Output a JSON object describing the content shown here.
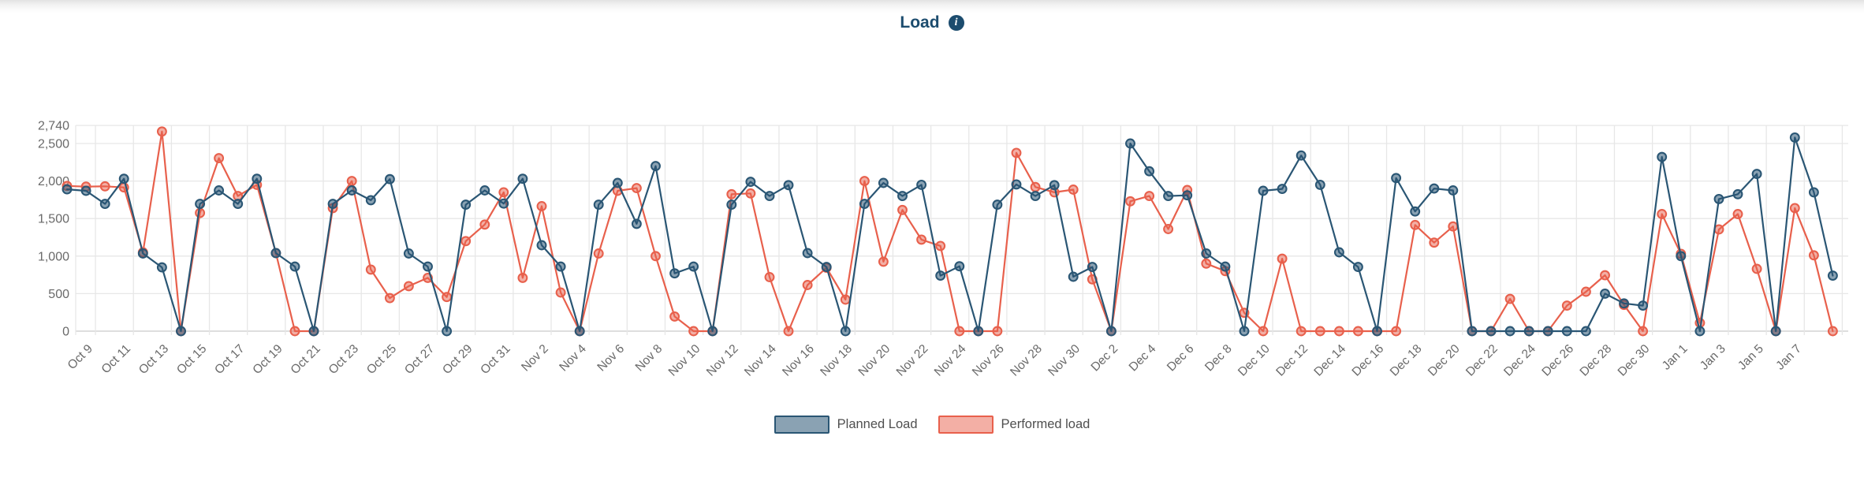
{
  "header": {
    "title": "Load",
    "info_glyph": "i"
  },
  "legend": [
    {
      "label": "Planned Load",
      "border": "#2a5674",
      "fill": "rgba(42,86,116,0.55)"
    },
    {
      "label": "Performed load",
      "border": "#e8604c",
      "fill": "rgba(232,96,76,0.5)"
    }
  ],
  "colors": {
    "title_navy": "#1c4c6e",
    "grid": "#e7e7e7",
    "axis_line": "#c9c9c9",
    "tick_label": "#696969"
  },
  "chart_data": {
    "type": "line",
    "title": "Load",
    "xlabel": "",
    "ylabel": "",
    "ylim": [
      0,
      2740
    ],
    "yticks": [
      0,
      500,
      1000,
      1500,
      2000,
      2500,
      2740
    ],
    "grid": true,
    "legend_position": "bottom",
    "x_tick_step_note": "labels shown every 2nd day from Oct 9 to Jan 7",
    "x": [
      "Oct 8",
      "Oct 9",
      "Oct 10",
      "Oct 11",
      "Oct 12",
      "Oct 13",
      "Oct 14",
      "Oct 15",
      "Oct 16",
      "Oct 17",
      "Oct 18",
      "Oct 19",
      "Oct 20",
      "Oct 21",
      "Oct 22",
      "Oct 23",
      "Oct 24",
      "Oct 25",
      "Oct 26",
      "Oct 27",
      "Oct 28",
      "Oct 29",
      "Oct 30",
      "Oct 31",
      "Nov 1",
      "Nov 2",
      "Nov 3",
      "Nov 4",
      "Nov 5",
      "Nov 6",
      "Nov 7",
      "Nov 8",
      "Nov 9",
      "Nov 10",
      "Nov 11",
      "Nov 12",
      "Nov 13",
      "Nov 14",
      "Nov 15",
      "Nov 16",
      "Nov 17",
      "Nov 18",
      "Nov 19",
      "Nov 20",
      "Nov 21",
      "Nov 22",
      "Nov 23",
      "Nov 24",
      "Nov 25",
      "Nov 26",
      "Nov 27",
      "Nov 28",
      "Nov 29",
      "Nov 30",
      "Dec 1",
      "Dec 2",
      "Dec 3",
      "Dec 4",
      "Dec 5",
      "Dec 6",
      "Dec 7",
      "Dec 8",
      "Dec 9",
      "Dec 10",
      "Dec 11",
      "Dec 12",
      "Dec 13",
      "Dec 14",
      "Dec 15",
      "Dec 16",
      "Dec 17",
      "Dec 18",
      "Dec 19",
      "Dec 20",
      "Dec 21",
      "Dec 22",
      "Dec 23",
      "Dec 24",
      "Dec 25",
      "Dec 26",
      "Dec 27",
      "Dec 28",
      "Dec 29",
      "Dec 30",
      "Dec 31",
      "Jan 1",
      "Jan 2",
      "Jan 3",
      "Jan 4",
      "Jan 5",
      "Jan 6",
      "Jan 7",
      "Jan 8",
      "Jan 9"
    ],
    "series": [
      {
        "name": "Planned Load",
        "color": "#2a5674",
        "marker_fill": "rgba(42,86,116,0.55)",
        "values": [
          1890,
          1870,
          1695,
          2030,
          1035,
          850,
          0,
          1695,
          1875,
          1695,
          2030,
          1040,
          860,
          0,
          1695,
          1875,
          1745,
          2025,
          1035,
          860,
          0,
          1685,
          1875,
          1700,
          2030,
          1145,
          860,
          0,
          1685,
          1975,
          1430,
          2200,
          770,
          860,
          0,
          1685,
          1990,
          1800,
          1945,
          1040,
          855,
          0,
          1695,
          1975,
          1800,
          1950,
          740,
          865,
          0,
          1685,
          1955,
          1800,
          1945,
          725,
          855,
          0,
          2500,
          2130,
          1800,
          1810,
          1035,
          860,
          0,
          1870,
          1895,
          2340,
          1950,
          1050,
          855,
          0,
          2040,
          1595,
          1900,
          1875,
          0,
          0,
          0,
          0,
          0,
          0,
          0,
          500,
          370,
          340,
          2320,
          1000,
          0,
          1760,
          1825,
          2095,
          0,
          2580,
          1850,
          740
        ]
      },
      {
        "name": "Performed load",
        "color": "#e8604c",
        "marker_fill": "rgba(232,96,76,0.5)",
        "values": [
          1935,
          1925,
          1930,
          1915,
          1050,
          2660,
          0,
          1575,
          2305,
          1800,
          1950,
          1040,
          0,
          0,
          1640,
          2000,
          820,
          440,
          600,
          710,
          455,
          1200,
          1420,
          1850,
          710,
          1665,
          515,
          0,
          1035,
          1870,
          1905,
          1000,
          195,
          0,
          0,
          1825,
          1835,
          720,
          0,
          615,
          845,
          420,
          2000,
          925,
          1615,
          1220,
          1135,
          0,
          0,
          0,
          2375,
          1920,
          1850,
          1885,
          690,
          0,
          1730,
          1800,
          1360,
          1880,
          900,
          800,
          245,
          0,
          965,
          0,
          0,
          0,
          0,
          0,
          0,
          1415,
          1180,
          1395,
          0,
          0,
          430,
          0,
          0,
          340,
          525,
          745,
          350,
          0,
          1560,
          1030,
          110,
          1355,
          1560,
          830,
          0,
          1640,
          1010,
          0
        ]
      }
    ]
  }
}
